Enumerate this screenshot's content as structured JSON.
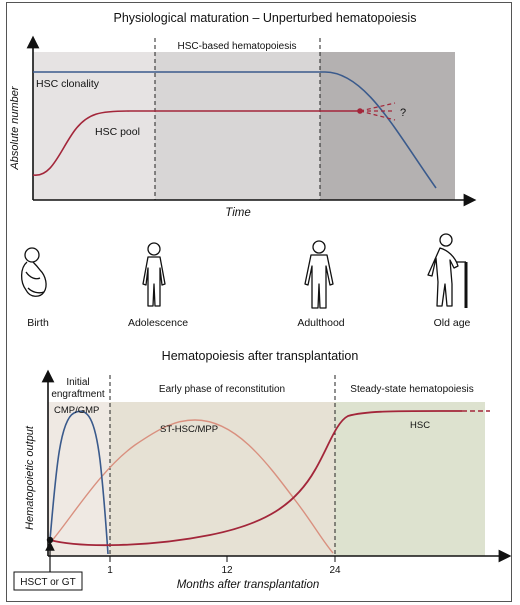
{
  "top_panel": {
    "title": "Physiological maturation – Unperturbed hematopoiesis",
    "region_label": "HSC-based hematopoiesis",
    "y_axis_label": "Absolute number",
    "x_axis_label": "Time",
    "curve_clonality_label": "HSC clonality",
    "curve_pool_label": "HSC pool",
    "question_mark": "?",
    "colors": {
      "clonality": "#3a5a8c",
      "pool": "#a3263a",
      "bg_light": "#e6e3e3",
      "bg_mid": "#d8d6d6",
      "bg_dark": "#b4b1b1"
    }
  },
  "life_stages": [
    {
      "label": "Birth",
      "icon": "infant-figure-icon"
    },
    {
      "label": "Adolescence",
      "icon": "adolescent-figure-icon"
    },
    {
      "label": "Adulthood",
      "icon": "adult-figure-icon"
    },
    {
      "label": "Old age",
      "icon": "elderly-with-cane-icon"
    }
  ],
  "bottom_panel": {
    "title": "Hematopoiesis after transplantation",
    "phase_1_label_line1": "Initial",
    "phase_1_label_line2": "engraftment",
    "phase_2_label": "Early phase of reconstitution",
    "phase_3_label": "Steady-state hematopoiesis",
    "y_axis_label": "Hematopoietic output",
    "x_axis_label": "Months after transplantation",
    "x_ticks": [
      "1",
      "12",
      "24"
    ],
    "curve_cmp_label": "CMP/GMP",
    "curve_st_label": "ST-HSC/MPP",
    "curve_hsc_label": "HSC",
    "start_box_label": "HSCT or GT",
    "colors": {
      "cmp": "#3a5a8c",
      "st": "#d9907f",
      "hsc": "#a3263a",
      "bg_phase1": "#efe9e3",
      "bg_phase2": "#e6e1d4",
      "bg_phase3": "#dde2cf"
    }
  }
}
